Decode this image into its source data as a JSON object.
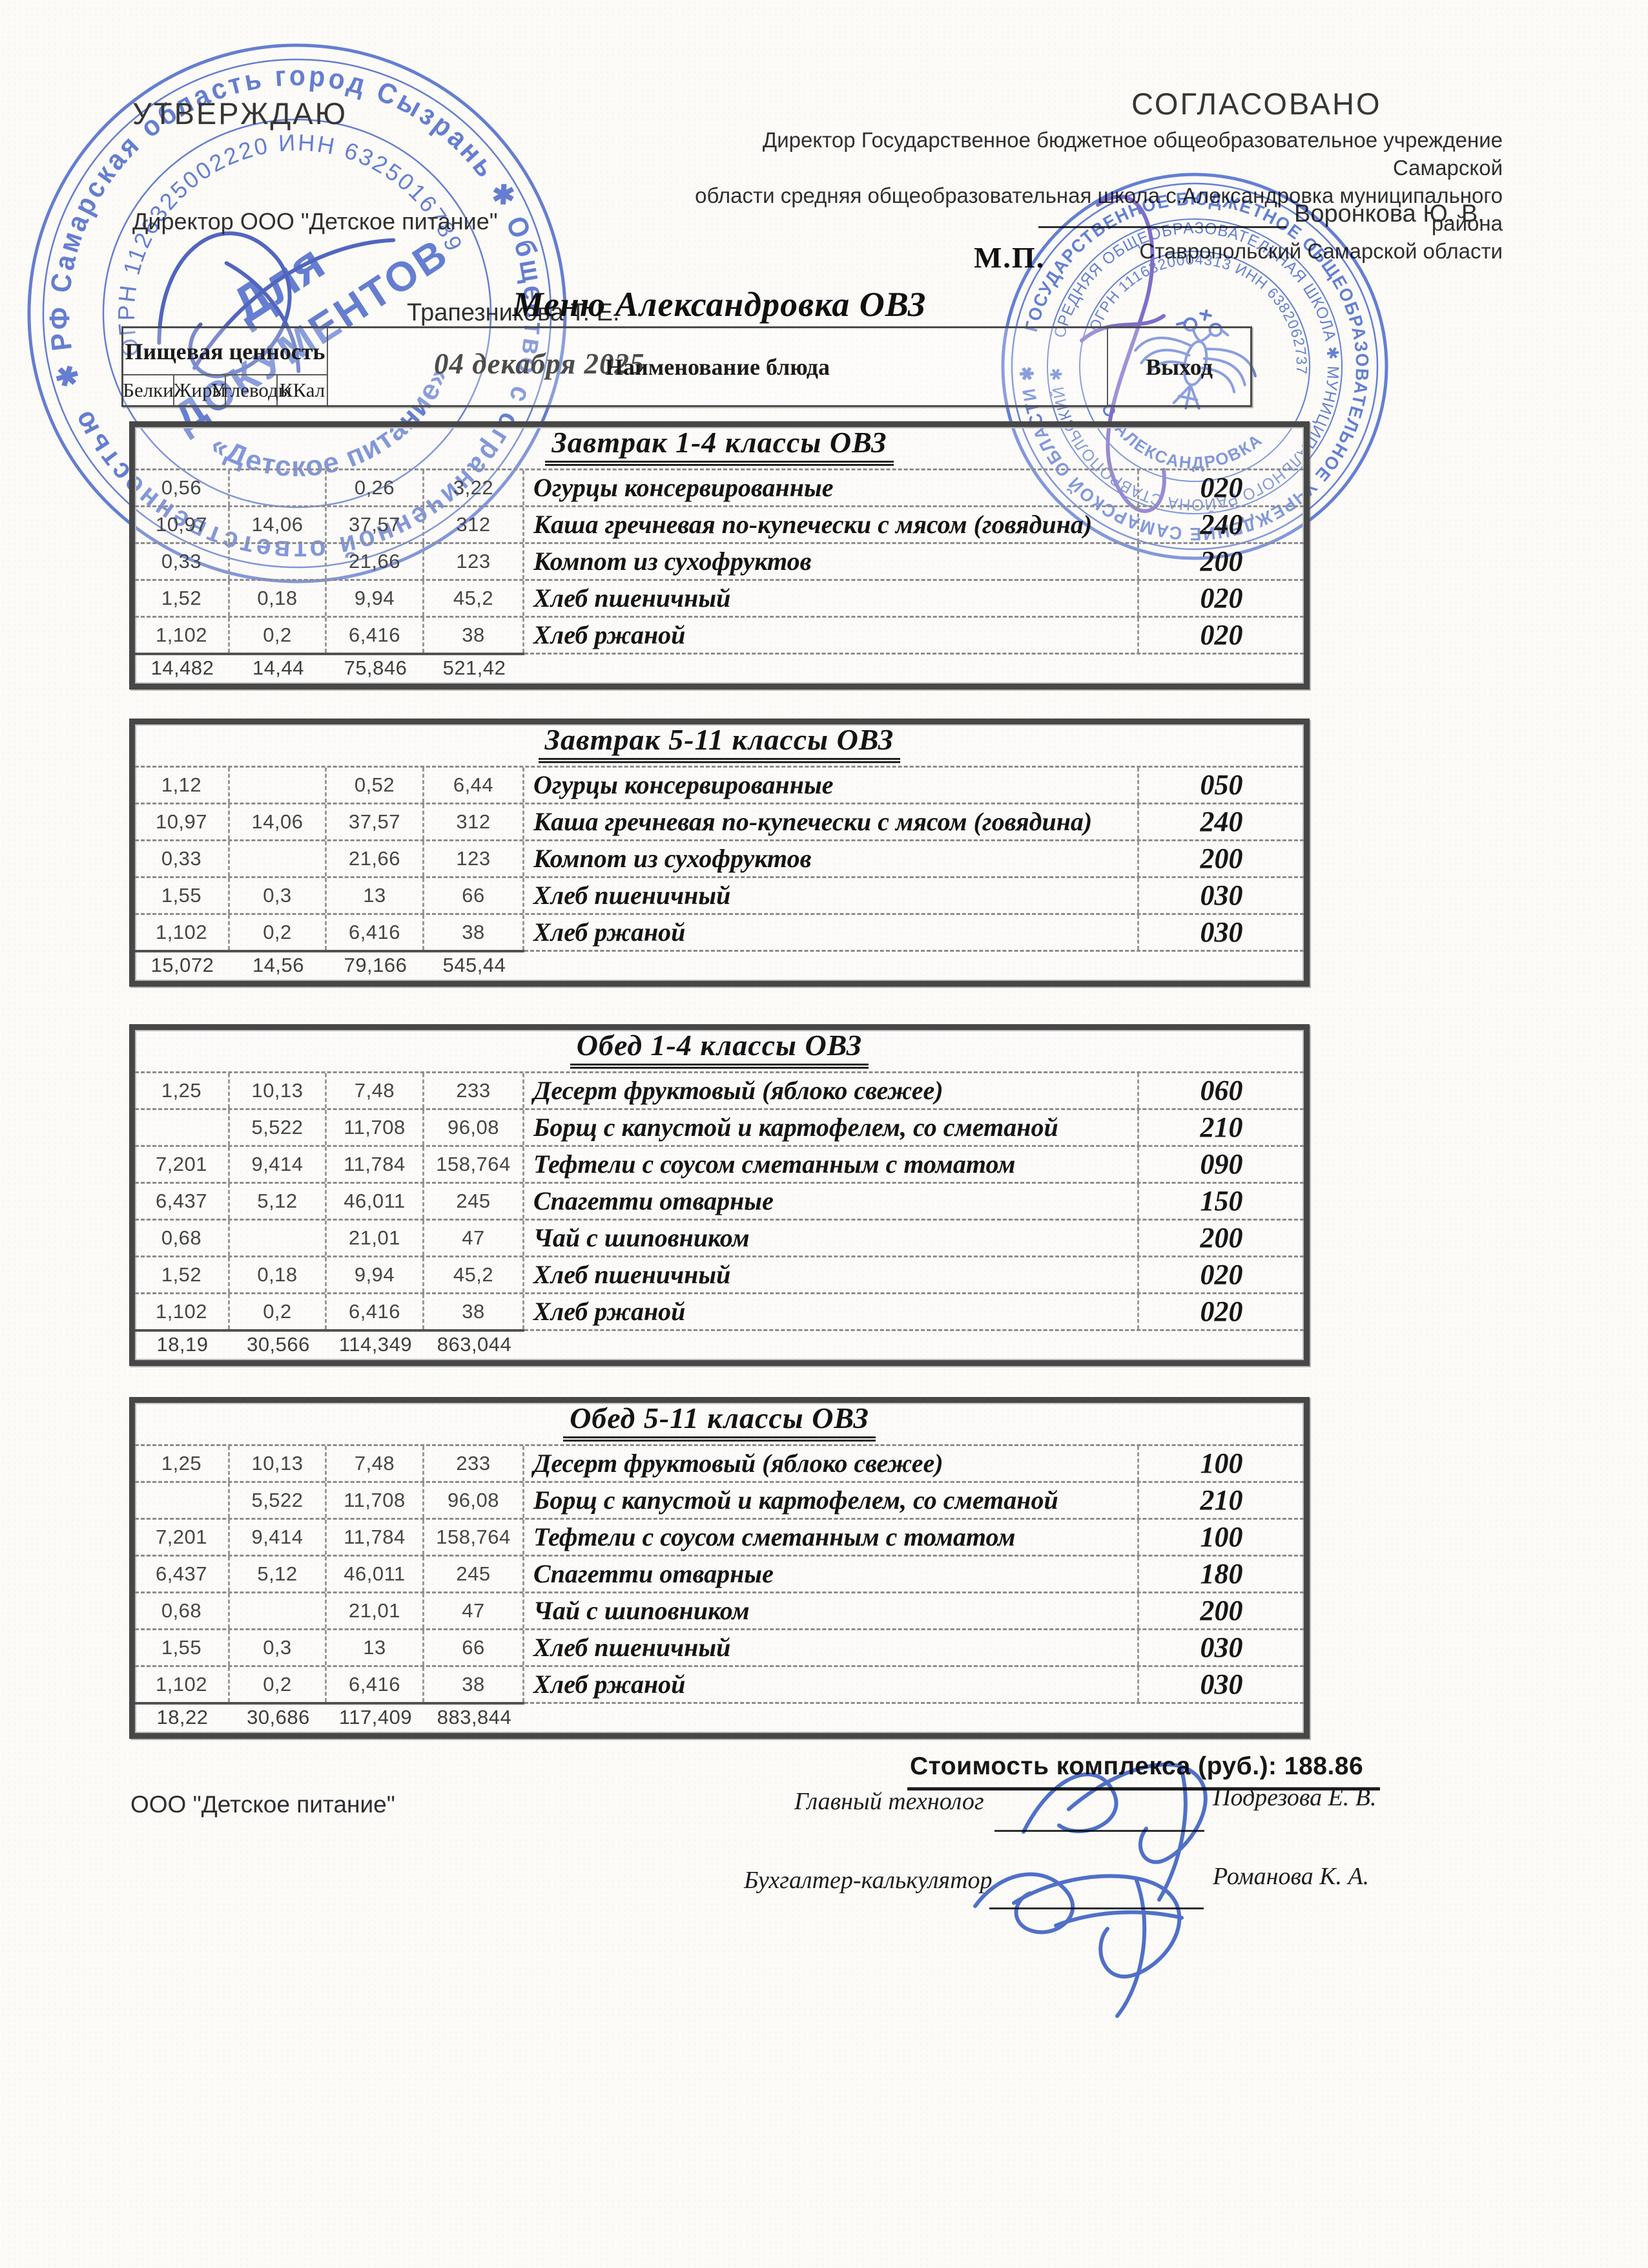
{
  "approvals": {
    "left": {
      "heading": "УТВЕРЖДАЮ",
      "role": "Директор ООО \"Детское питание\"",
      "name": "Трапезникова Т. Е.",
      "date": "04 декабря 2025"
    },
    "right": {
      "heading": "СОГЛАСОВАНО",
      "role_line1": "Директор Государственное бюджетное общеобразовательное учреждение Самарской",
      "role_line2": "области средняя общеобразовательная школа с.Александровка муниципального района",
      "role_line3": "Ставропольский Самарской области",
      "name": "Воронкова Ю. В.",
      "seal_mark": "М.П."
    }
  },
  "title": "Меню Александровка ОВЗ",
  "header_table": {
    "nutrition_group": "Пищевая ценность",
    "columns": [
      "Белки",
      "Жиры",
      "Углеводы",
      "ККал"
    ],
    "dish_header": "Наименование блюда",
    "output_header": "Выход"
  },
  "tables": [
    {
      "title": "Завтрак 1-4 классы ОВЗ",
      "rows": [
        [
          "0,56",
          "",
          "0,26",
          "3,22",
          "Огурцы консервированные",
          "020"
        ],
        [
          "10,97",
          "14,06",
          "37,57",
          "312",
          "Каша гречневая по-купечески с мясом (говядина)",
          "240"
        ],
        [
          "0,33",
          "",
          "21,66",
          "123",
          "Компот из сухофруктов",
          "200"
        ],
        [
          "1,52",
          "0,18",
          "9,94",
          "45,2",
          "Хлеб пшеничный",
          "020"
        ],
        [
          "1,102",
          "0,2",
          "6,416",
          "38",
          "Хлеб ржаной",
          "020"
        ]
      ],
      "totals": [
        "14,482",
        "14,44",
        "75,846",
        "521,42"
      ]
    },
    {
      "title": "Завтрак 5-11 классы ОВЗ",
      "rows": [
        [
          "1,12",
          "",
          "0,52",
          "6,44",
          "Огурцы консервированные",
          "050"
        ],
        [
          "10,97",
          "14,06",
          "37,57",
          "312",
          "Каша гречневая по-купечески с мясом (говядина)",
          "240"
        ],
        [
          "0,33",
          "",
          "21,66",
          "123",
          "Компот из сухофруктов",
          "200"
        ],
        [
          "1,55",
          "0,3",
          "13",
          "66",
          "Хлеб пшеничный",
          "030"
        ],
        [
          "1,102",
          "0,2",
          "6,416",
          "38",
          "Хлеб ржаной",
          "030"
        ]
      ],
      "totals": [
        "15,072",
        "14,56",
        "79,166",
        "545,44"
      ]
    },
    {
      "title": "Обед 1-4 классы ОВЗ",
      "rows": [
        [
          "1,25",
          "10,13",
          "7,48",
          "233",
          "Десерт фруктовый (яблоко свежее)",
          "060"
        ],
        [
          "",
          "5,522",
          "11,708",
          "96,08",
          "Борщ с капустой и картофелем, со сметаной",
          "210"
        ],
        [
          "7,201",
          "9,414",
          "11,784",
          "158,764",
          "Тефтели с соусом сметанным с томатом",
          "090"
        ],
        [
          "6,437",
          "5,12",
          "46,011",
          "245",
          "Спагетти отварные",
          "150"
        ],
        [
          "0,68",
          "",
          "21,01",
          "47",
          "Чай с шиповником",
          "200"
        ],
        [
          "1,52",
          "0,18",
          "9,94",
          "45,2",
          "Хлеб пшеничный",
          "020"
        ],
        [
          "1,102",
          "0,2",
          "6,416",
          "38",
          "Хлеб ржаной",
          "020"
        ]
      ],
      "totals": [
        "18,19",
        "30,566",
        "114,349",
        "863,044"
      ]
    },
    {
      "title": "Обед 5-11 классы ОВЗ",
      "rows": [
        [
          "1,25",
          "10,13",
          "7,48",
          "233",
          "Десерт фруктовый (яблоко свежее)",
          "100"
        ],
        [
          "",
          "5,522",
          "11,708",
          "96,08",
          "Борщ с капустой и картофелем, со сметаной",
          "210"
        ],
        [
          "7,201",
          "9,414",
          "11,784",
          "158,764",
          "Тефтели с соусом сметанным с томатом",
          "100"
        ],
        [
          "6,437",
          "5,12",
          "46,011",
          "245",
          "Спагетти отварные",
          "180"
        ],
        [
          "0,68",
          "",
          "21,01",
          "47",
          "Чай с шиповником",
          "200"
        ],
        [
          "1,55",
          "0,3",
          "13",
          "66",
          "Хлеб пшеничный",
          "030"
        ],
        [
          "1,102",
          "0,2",
          "6,416",
          "38",
          "Хлеб ржаной",
          "030"
        ]
      ],
      "totals": [
        "18,22",
        "30,686",
        "117,409",
        "883,844"
      ]
    }
  ],
  "footer": {
    "cost_label": "Стоимость комплекса (руб.): 188.86",
    "company": "ООО \"Детское питание\"",
    "technologist_role": "Главный технолог",
    "technologist_name": "Подрезова Е. В.",
    "accountant_role": "Бухгалтер-калькулятор",
    "accountant_name": "Романова К. А."
  },
  "stamps": {
    "left": {
      "ring_outer": "✱ РФ Самарская область город Сызрань ✱ Общество с ограниченной ответственностью",
      "ring_inner": "ОГРН 1126325002220 ИНН 6325016789",
      "ring_bottom": "«Детское питание»",
      "center_line1": "Для",
      "center_line2": "ДОКУМЕНТОВ"
    },
    "right": {
      "ring_outer": "ГОСУДАРСТВЕННОЕ БЮДЖЕТНОЕ ОБЩЕОБРАЗОВАТЕЛЬНОЕ УЧРЕЖДЕНИЕ САМАРСКОЙ ОБЛАСТИ ✱",
      "ring_middle": "СРЕДНЯЯ ОБЩЕОБРАЗОВАТЕЛЬНАЯ ШКОЛА ✱ МУНИЦИПАЛЬНОГО РАЙОНА СТАВРОПОЛЬСКИЙ ✱",
      "ring_inner_top": "ОГРН 1116320004313 ИНН 6382062737",
      "ring_inner_bottom": "С. АЛЕКСАНДРОВКА"
    }
  },
  "colors": {
    "stamp_blue": "#4565cf",
    "signature_blue": "#3f63c9",
    "signature_purple": "#6a58c8",
    "ink": "#2b2b2b"
  }
}
